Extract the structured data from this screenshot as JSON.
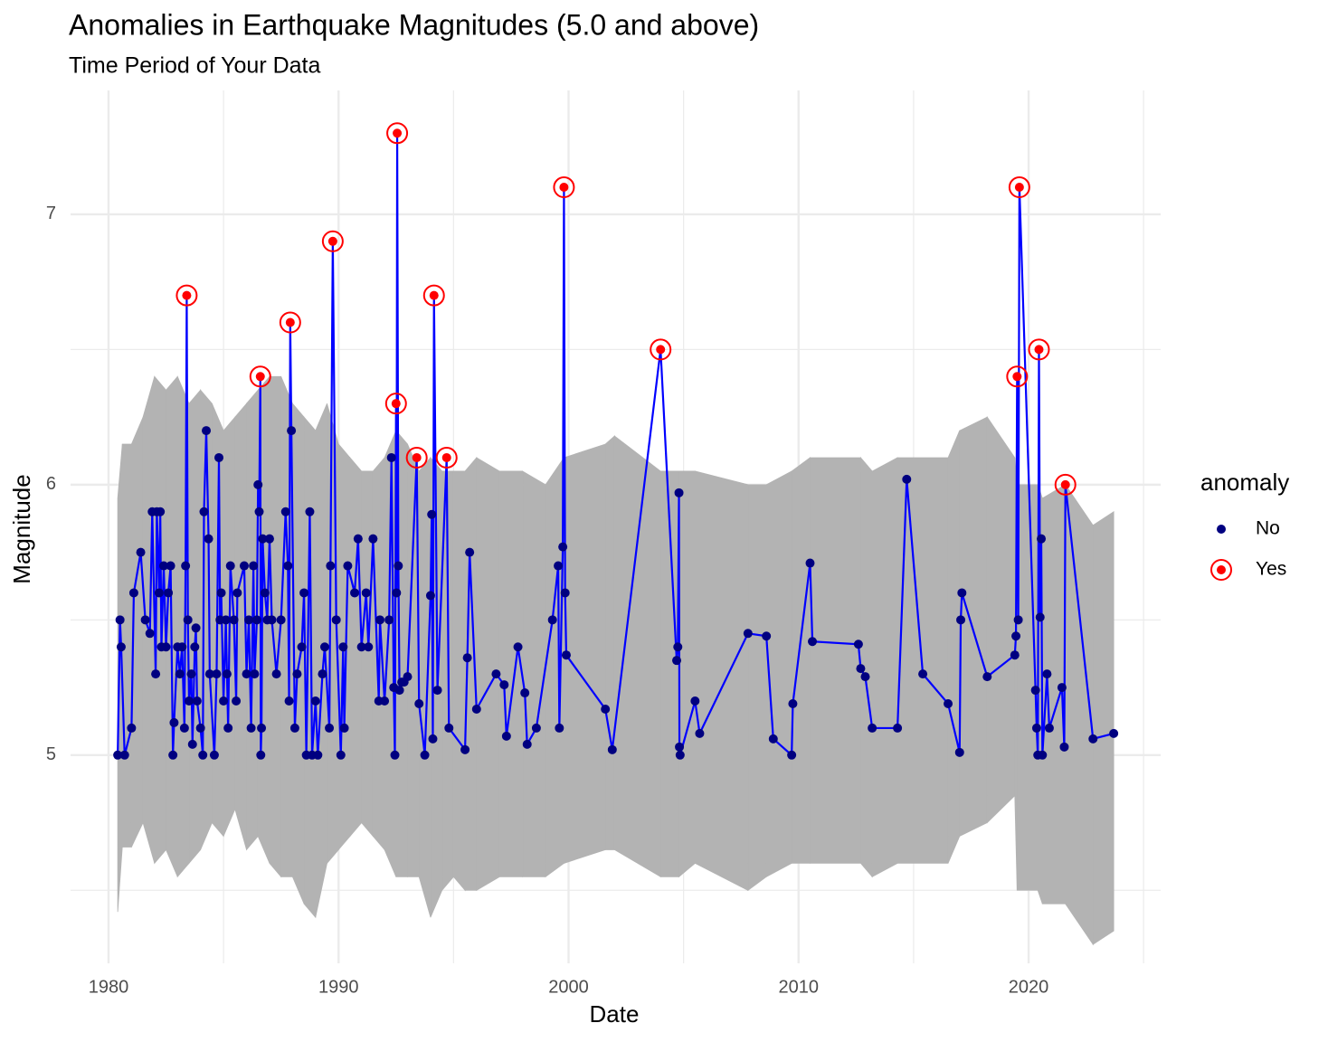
{
  "chart_data": {
    "type": "line",
    "title": "Anomalies in Earthquake Magnitudes (5.0 and above)",
    "subtitle": "Time Period of Your Data",
    "x_label": "Date",
    "y_label": "Magnitude",
    "xlim": [
      1978.35,
      2025.74
    ],
    "ylim": [
      4.23,
      7.458
    ],
    "xticks": [
      1980,
      1990,
      2000,
      2010,
      2020
    ],
    "yticks": [
      5,
      6,
      7
    ],
    "xminor": [
      1985,
      1995,
      2005,
      2015,
      2025
    ],
    "yminor": [
      4.5,
      5.5,
      6.5
    ],
    "grid": true,
    "line_color": "blue",
    "band_color": "#b3b3b3",
    "legend": {
      "title": "anomaly",
      "labels": [
        "No",
        "Yes"
      ],
      "colors": [
        "#000080",
        "red"
      ]
    },
    "x": [
      1980.4,
      1980.5,
      1980.55,
      1980.7,
      1981.0,
      1981.1,
      1981.4,
      1981.6,
      1981.8,
      1981.9,
      1982.05,
      1982.1,
      1982.2,
      1982.25,
      1982.3,
      1982.4,
      1982.5,
      1982.6,
      1982.7,
      1982.8,
      1982.85,
      1983.0,
      1983.1,
      1983.2,
      1983.3,
      1983.35,
      1983.4,
      1983.45,
      1983.5,
      1983.6,
      1983.65,
      1983.75,
      1983.8,
      1983.85,
      1984.0,
      1984.1,
      1984.15,
      1984.25,
      1984.35,
      1984.4,
      1984.6,
      1984.7,
      1984.8,
      1984.85,
      1984.9,
      1985.0,
      1985.1,
      1985.15,
      1985.2,
      1985.3,
      1985.45,
      1985.55,
      1985.6,
      1985.9,
      1986.0,
      1986.1,
      1986.2,
      1986.3,
      1986.35,
      1986.45,
      1986.5,
      1986.55,
      1986.6,
      1986.62,
      1986.65,
      1986.7,
      1986.8,
      1986.9,
      1987.0,
      1987.1,
      1987.3,
      1987.5,
      1987.7,
      1987.8,
      1987.85,
      1987.9,
      1987.95,
      1988.1,
      1988.2,
      1988.4,
      1988.5,
      1988.6,
      1988.75,
      1988.85,
      1989.0,
      1989.1,
      1989.3,
      1989.4,
      1989.6,
      1989.65,
      1989.75,
      1989.9,
      1990.1,
      1990.2,
      1990.25,
      1990.4,
      1990.7,
      1990.85,
      1991.0,
      1991.2,
      1991.3,
      1991.5,
      1991.75,
      1991.8,
      1992.0,
      1992.2,
      1992.3,
      1992.4,
      1992.45,
      1992.5,
      1992.52,
      1992.55,
      1992.6,
      1992.65,
      1992.75,
      1992.85,
      1993.0,
      1993.4,
      1993.5,
      1993.75,
      1994.0,
      1994.05,
      1994.1,
      1994.15,
      1994.3,
      1994.7,
      1994.8,
      1995.5,
      1995.6,
      1995.7,
      1996.0,
      1996.85,
      1997.2,
      1997.3,
      1997.8,
      1998.1,
      1998.2,
      1998.6,
      1999.3,
      1999.55,
      1999.6,
      1999.75,
      1999.8,
      1999.85,
      1999.9,
      2001.6,
      2001.9,
      2004.0,
      2004.7,
      2004.75,
      2004.8,
      2004.82,
      2004.85,
      2005.5,
      2005.7,
      2007.8,
      2008.6,
      2008.9,
      2009.7,
      2009.75,
      2010.5,
      2010.6,
      2012.6,
      2012.7,
      2012.9,
      2013.2,
      2014.3,
      2014.7,
      2015.4,
      2016.5,
      2017.0,
      2017.05,
      2017.1,
      2018.2,
      2019.4,
      2019.45,
      2019.5,
      2019.55,
      2019.6,
      2020.3,
      2020.35,
      2020.4,
      2020.45,
      2020.5,
      2020.55,
      2020.6,
      2020.8,
      2020.9,
      2021.45,
      2021.55,
      2021.6,
      2022.8,
      2023.7
    ],
    "values": [
      5.0,
      5.5,
      5.4,
      5.0,
      5.1,
      5.6,
      5.75,
      5.5,
      5.45,
      5.9,
      5.3,
      5.9,
      5.6,
      5.9,
      5.4,
      5.7,
      5.4,
      5.6,
      5.7,
      5.0,
      5.12,
      5.4,
      5.3,
      5.4,
      5.1,
      5.7,
      6.7,
      5.5,
      5.2,
      5.3,
      5.04,
      5.4,
      5.47,
      5.2,
      5.1,
      5.0,
      5.9,
      6.2,
      5.8,
      5.3,
      5.0,
      5.3,
      6.1,
      5.5,
      5.6,
      5.2,
      5.5,
      5.3,
      5.1,
      5.7,
      5.5,
      5.2,
      5.6,
      5.7,
      5.3,
      5.5,
      5.1,
      5.7,
      5.3,
      5.5,
      6.0,
      5.9,
      6.4,
      5.0,
      5.1,
      5.8,
      5.6,
      5.5,
      5.8,
      5.5,
      5.3,
      5.5,
      5.9,
      5.7,
      5.2,
      6.6,
      6.2,
      5.1,
      5.3,
      5.4,
      5.6,
      5.0,
      5.9,
      5.0,
      5.2,
      5.0,
      5.3,
      5.4,
      5.1,
      5.7,
      6.9,
      5.5,
      5.0,
      5.4,
      5.1,
      5.7,
      5.6,
      5.8,
      5.4,
      5.6,
      5.4,
      5.8,
      5.2,
      5.5,
      5.2,
      5.5,
      6.1,
      5.25,
      5.0,
      6.3,
      5.6,
      7.3,
      5.7,
      5.24,
      5.27,
      5.27,
      5.29,
      6.1,
      5.19,
      5.0,
      5.59,
      5.89,
      5.06,
      6.7,
      5.24,
      6.1,
      5.1,
      5.02,
      5.36,
      5.75,
      5.17,
      5.3,
      5.26,
      5.07,
      5.4,
      5.23,
      5.04,
      5.1,
      5.5,
      5.7,
      5.1,
      5.77,
      7.1,
      5.6,
      5.37,
      5.17,
      5.02,
      6.5,
      5.35,
      5.4,
      5.97,
      5.03,
      5.0,
      5.2,
      5.08,
      5.45,
      5.44,
      5.06,
      5.0,
      5.19,
      5.71,
      5.42,
      5.41,
      5.32,
      5.29,
      5.1,
      5.1,
      6.02,
      5.3,
      5.19,
      5.01,
      5.5,
      5.6,
      5.29,
      5.37,
      5.44,
      6.4,
      5.5,
      7.1,
      5.24,
      5.1,
      5.0,
      6.5,
      5.51,
      5.8,
      5.0,
      5.3,
      5.1,
      5.25,
      5.03,
      6.0,
      5.06,
      5.08
    ],
    "anomaly": [
      "No",
      "No",
      "No",
      "No",
      "No",
      "No",
      "No",
      "No",
      "No",
      "No",
      "No",
      "No",
      "No",
      "No",
      "No",
      "No",
      "No",
      "No",
      "No",
      "No",
      "No",
      "No",
      "No",
      "No",
      "No",
      "No",
      "Yes",
      "No",
      "No",
      "No",
      "No",
      "No",
      "No",
      "No",
      "No",
      "No",
      "No",
      "No",
      "No",
      "No",
      "No",
      "No",
      "No",
      "No",
      "No",
      "No",
      "No",
      "No",
      "No",
      "No",
      "No",
      "No",
      "No",
      "No",
      "No",
      "No",
      "No",
      "No",
      "No",
      "No",
      "No",
      "No",
      "Yes",
      "No",
      "No",
      "No",
      "No",
      "No",
      "No",
      "No",
      "No",
      "No",
      "No",
      "No",
      "No",
      "Yes",
      "No",
      "No",
      "No",
      "No",
      "No",
      "No",
      "No",
      "No",
      "No",
      "No",
      "No",
      "No",
      "No",
      "No",
      "Yes",
      "No",
      "No",
      "No",
      "No",
      "No",
      "No",
      "No",
      "No",
      "No",
      "No",
      "No",
      "No",
      "No",
      "No",
      "No",
      "No",
      "No",
      "No",
      "Yes",
      "No",
      "Yes",
      "No",
      "No",
      "No",
      "No",
      "No",
      "Yes",
      "No",
      "No",
      "No",
      "No",
      "No",
      "Yes",
      "No",
      "Yes",
      "No",
      "No",
      "No",
      "No",
      "No",
      "No",
      "No",
      "No",
      "No",
      "No",
      "No",
      "No",
      "No",
      "No",
      "No",
      "No",
      "Yes",
      "No",
      "No",
      "No",
      "No",
      "Yes",
      "No",
      "No",
      "No",
      "No",
      "No",
      "No",
      "No",
      "No",
      "No",
      "No",
      "No",
      "No",
      "No",
      "No",
      "No",
      "No",
      "No",
      "No",
      "No",
      "No",
      "No",
      "No",
      "No",
      "No",
      "No",
      "No",
      "No",
      "No",
      "Yes",
      "No",
      "Yes",
      "No",
      "No",
      "No",
      "Yes",
      "No",
      "No",
      "No",
      "No",
      "No",
      "No",
      "No",
      "Yes",
      "No",
      "No"
    ],
    "band": {
      "x": [
        1980.4,
        1980.6,
        1981.0,
        1981.5,
        1982.0,
        1982.5,
        1983.0,
        1983.5,
        1984.0,
        1984.5,
        1985.0,
        1985.5,
        1986.0,
        1986.5,
        1987.0,
        1987.5,
        1988.0,
        1988.5,
        1989.0,
        1989.5,
        1990.0,
        1990.5,
        1991.0,
        1991.5,
        1992.0,
        1992.5,
        1993.0,
        1993.5,
        1994.0,
        1994.5,
        1995.0,
        1995.5,
        1996.0,
        1997.0,
        1998.0,
        1999.0,
        1999.8,
        2001.6,
        2002.0,
        2004.0,
        2004.8,
        2005.5,
        2007.8,
        2008.6,
        2009.7,
        2010.5,
        2012.7,
        2013.2,
        2014.3,
        2016.5,
        2017.0,
        2018.2,
        2019.4,
        2019.5,
        2020.4,
        2020.6,
        2021.6,
        2022.8,
        2023.7
      ],
      "lower": [
        4.42,
        4.66,
        4.66,
        4.75,
        4.6,
        4.65,
        4.55,
        4.6,
        4.65,
        4.75,
        4.7,
        4.8,
        4.65,
        4.7,
        4.6,
        4.55,
        4.55,
        4.45,
        4.4,
        4.6,
        4.65,
        4.7,
        4.75,
        4.7,
        4.65,
        4.55,
        4.55,
        4.55,
        4.4,
        4.5,
        4.55,
        4.5,
        4.5,
        4.55,
        4.55,
        4.55,
        4.6,
        4.65,
        4.65,
        4.55,
        4.55,
        4.6,
        4.5,
        4.55,
        4.6,
        4.6,
        4.6,
        4.55,
        4.6,
        4.6,
        4.7,
        4.75,
        4.85,
        4.5,
        4.5,
        4.45,
        4.45,
        4.3,
        4.35
      ],
      "upper": [
        5.95,
        6.15,
        6.15,
        6.25,
        6.4,
        6.35,
        6.4,
        6.3,
        6.35,
        6.3,
        6.2,
        6.25,
        6.3,
        6.35,
        6.4,
        6.4,
        6.3,
        6.25,
        6.2,
        6.3,
        6.15,
        6.1,
        6.05,
        6.05,
        6.1,
        6.2,
        6.15,
        6.05,
        6.1,
        6.05,
        6.05,
        6.05,
        6.1,
        6.05,
        6.05,
        6.0,
        6.1,
        6.15,
        6.18,
        6.05,
        6.05,
        6.05,
        6.0,
        6.0,
        6.05,
        6.1,
        6.1,
        6.05,
        6.1,
        6.1,
        6.2,
        6.25,
        6.1,
        6.0,
        6.0,
        5.95,
        6.0,
        5.85,
        5.9
      ]
    }
  }
}
